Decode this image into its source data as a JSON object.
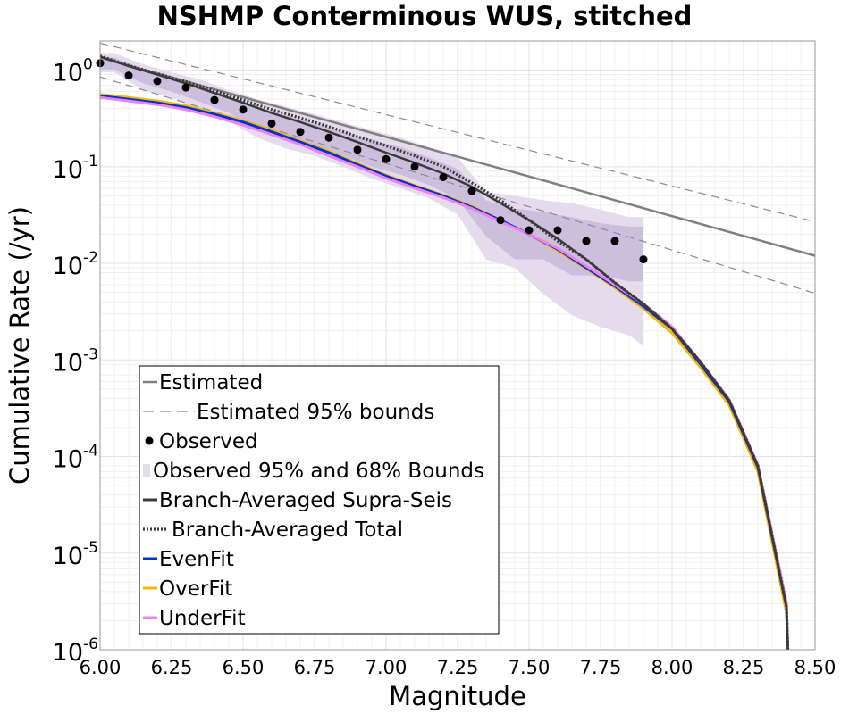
{
  "chart_data": {
    "type": "line",
    "title": "NSHMP Conterminous WUS, stitched",
    "xlabel": "Magnitude",
    "ylabel": "Cumulative Rate (/yr)",
    "xlim": [
      6.0,
      8.5
    ],
    "ylim": [
      1e-06,
      2.0
    ],
    "y_scale": "log",
    "grid": true,
    "legend_placement": "bottom-left",
    "x_ticks": [
      "6.00",
      "6.25",
      "6.50",
      "6.75",
      "7.00",
      "7.25",
      "7.50",
      "7.75",
      "8.00",
      "8.25",
      "8.50"
    ],
    "y_ticks": [
      {
        "value": 1,
        "base": "10",
        "exp": "0"
      },
      {
        "value": 0.1,
        "base": "10",
        "exp": "-1"
      },
      {
        "value": 0.01,
        "base": "10",
        "exp": "-2"
      },
      {
        "value": 0.001,
        "base": "10",
        "exp": "-3"
      },
      {
        "value": 0.0001,
        "base": "10",
        "exp": "-4"
      },
      {
        "value": 1e-05,
        "base": "10",
        "exp": "-5"
      },
      {
        "value": 1e-06,
        "base": "10",
        "exp": "-6"
      }
    ],
    "colors": {
      "estimated": "#808080",
      "bounds": "#8c8c8c",
      "observed": "#000000",
      "band95": "#e4dced",
      "band68": "#c7bad9",
      "supra": "#3a3a3a",
      "total": "#3a3a3a",
      "evenfit": "#0030d8",
      "overfit": "#f5b800",
      "underfit": "#ee82ee"
    },
    "legend": [
      {
        "key": "estimated",
        "label": "Estimated"
      },
      {
        "key": "bounds",
        "label": "Estimated 95% bounds"
      },
      {
        "key": "observed",
        "label": "Observed"
      },
      {
        "key": "bands",
        "label": "Observed 95% and 68% Bounds"
      },
      {
        "key": "supra",
        "label": "Branch-Averaged Supra-Seis"
      },
      {
        "key": "total",
        "label": "Branch-Averaged Total"
      },
      {
        "key": "evenfit",
        "label": "EvenFit"
      },
      {
        "key": "overfit",
        "label": "OverFit"
      },
      {
        "key": "underfit",
        "label": "UnderFit"
      }
    ],
    "estimated": {
      "x": [
        6.0,
        8.5
      ],
      "y": [
        1.35,
        0.012
      ]
    },
    "estimated_upper": {
      "x": [
        6.0,
        8.5
      ],
      "y": [
        1.9,
        0.027
      ]
    },
    "estimated_lower": {
      "x": [
        6.0,
        8.5
      ],
      "y": [
        0.85,
        0.0049
      ]
    },
    "observed": {
      "x": [
        6.0,
        6.1,
        6.2,
        6.3,
        6.4,
        6.5,
        6.6,
        6.7,
        6.8,
        6.9,
        7.0,
        7.1,
        7.2,
        7.3,
        7.4,
        7.5,
        7.6,
        7.7,
        7.8,
        7.9
      ],
      "y": [
        1.18,
        0.88,
        0.77,
        0.66,
        0.49,
        0.39,
        0.28,
        0.23,
        0.2,
        0.15,
        0.12,
        0.1,
        0.078,
        0.056,
        0.028,
        0.022,
        0.022,
        0.017,
        0.017,
        0.011
      ]
    },
    "observed_95_bounds": {
      "x": [
        6.0,
        6.05,
        6.15,
        6.25,
        6.35,
        6.45,
        6.55,
        6.65,
        6.75,
        6.85,
        6.95,
        7.05,
        7.15,
        7.25,
        7.35,
        7.45,
        7.55,
        7.65,
        7.75,
        7.85,
        7.9
      ],
      "upper": [
        1.5,
        1.5,
        1.15,
        0.95,
        0.8,
        0.62,
        0.5,
        0.42,
        0.35,
        0.29,
        0.24,
        0.2,
        0.16,
        0.125,
        0.055,
        0.05,
        0.045,
        0.042,
        0.036,
        0.03,
        0.03
      ],
      "lower": [
        0.95,
        0.95,
        0.62,
        0.52,
        0.4,
        0.3,
        0.2,
        0.155,
        0.13,
        0.1,
        0.075,
        0.06,
        0.047,
        0.032,
        0.011,
        0.009,
        0.0048,
        0.0029,
        0.0022,
        0.0018,
        0.0014
      ]
    },
    "observed_68_bounds": {
      "x": [
        6.0,
        6.05,
        6.15,
        6.25,
        6.35,
        6.45,
        6.55,
        6.65,
        6.75,
        6.85,
        6.95,
        7.05,
        7.15,
        7.25,
        7.35,
        7.45,
        7.55,
        7.65,
        7.75,
        7.85,
        7.9
      ],
      "upper": [
        1.35,
        1.35,
        1.0,
        0.83,
        0.68,
        0.52,
        0.41,
        0.34,
        0.28,
        0.23,
        0.19,
        0.16,
        0.125,
        0.095,
        0.045,
        0.037,
        0.034,
        0.03,
        0.026,
        0.024,
        0.024
      ],
      "lower": [
        1.02,
        1.02,
        0.73,
        0.6,
        0.47,
        0.36,
        0.24,
        0.2,
        0.17,
        0.13,
        0.1,
        0.083,
        0.065,
        0.046,
        0.019,
        0.011,
        0.011,
        0.0075,
        0.0075,
        0.0065,
        0.0065
      ]
    },
    "series": [
      {
        "name": "Branch-Averaged Supra-Seis",
        "key": "supra",
        "x": [
          6.0,
          6.1,
          6.2,
          6.3,
          6.4,
          6.5,
          6.6,
          6.7,
          6.8,
          6.9,
          7.0,
          7.1,
          7.2,
          7.3,
          7.4,
          7.5,
          7.6,
          7.7,
          7.8,
          7.9,
          8.0,
          8.1,
          8.2,
          8.3,
          8.4,
          8.405
        ],
        "y": [
          1.38,
          1.1,
          0.9,
          0.73,
          0.58,
          0.46,
          0.36,
          0.29,
          0.23,
          0.18,
          0.14,
          0.11,
          0.085,
          0.062,
          0.042,
          0.028,
          0.018,
          0.011,
          0.0063,
          0.0038,
          0.0021,
          0.00095,
          0.00038,
          8e-05,
          2.8e-06,
          1e-06
        ]
      },
      {
        "name": "Branch-Averaged Total",
        "key": "total",
        "x": [
          6.0,
          6.1,
          6.2,
          6.3,
          6.4,
          6.5,
          6.6,
          6.7,
          6.8,
          6.9,
          7.0,
          7.1,
          7.2,
          7.3,
          7.4,
          7.5,
          7.6,
          7.7,
          7.8,
          7.9,
          8.0,
          8.1,
          8.2,
          8.3,
          8.4,
          8.405
        ],
        "y": [
          1.4,
          1.12,
          0.92,
          0.76,
          0.61,
          0.49,
          0.39,
          0.32,
          0.26,
          0.205,
          0.165,
          0.13,
          0.1,
          0.068,
          0.045,
          0.028,
          0.017,
          0.011,
          0.0063,
          0.0038,
          0.0021,
          0.00095,
          0.00038,
          8e-05,
          2.8e-06,
          1e-06
        ]
      },
      {
        "name": "EvenFit",
        "key": "evenfit",
        "x": [
          6.0,
          6.1,
          6.2,
          6.3,
          6.4,
          6.5,
          6.6,
          6.7,
          6.8,
          6.9,
          7.0,
          7.1,
          7.2,
          7.3,
          7.4,
          7.5,
          7.6,
          7.7,
          7.8,
          7.9,
          8.0,
          8.1,
          8.2,
          8.3,
          8.4,
          8.405
        ],
        "y": [
          0.54,
          0.5,
          0.46,
          0.41,
          0.35,
          0.29,
          0.23,
          0.18,
          0.14,
          0.105,
          0.08,
          0.063,
          0.05,
          0.038,
          0.028,
          0.02,
          0.014,
          0.009,
          0.0058,
          0.0036,
          0.0021,
          0.0009,
          0.00037,
          7.8e-05,
          2.8e-06,
          1e-06
        ]
      },
      {
        "name": "OverFit",
        "key": "overfit",
        "x": [
          6.0,
          6.1,
          6.2,
          6.3,
          6.4,
          6.5,
          6.6,
          6.7,
          6.8,
          6.9,
          7.0,
          7.1,
          7.2,
          7.3,
          7.4,
          7.5,
          7.6,
          7.7,
          7.8,
          7.9,
          8.0,
          8.1,
          8.2,
          8.3,
          8.4,
          8.405
        ],
        "y": [
          0.56,
          0.52,
          0.48,
          0.43,
          0.36,
          0.3,
          0.24,
          0.185,
          0.145,
          0.108,
          0.082,
          0.064,
          0.051,
          0.039,
          0.028,
          0.02,
          0.0135,
          0.0088,
          0.0056,
          0.0034,
          0.0019,
          0.00083,
          0.00034,
          7e-05,
          2.4e-06,
          1e-06
        ]
      },
      {
        "name": "UnderFit",
        "key": "underfit",
        "x": [
          6.0,
          6.1,
          6.2,
          6.3,
          6.4,
          6.5,
          6.6,
          6.7,
          6.8,
          6.9,
          7.0,
          7.1,
          7.2,
          7.3,
          7.4,
          7.5,
          7.6,
          7.7,
          7.8,
          7.9,
          8.0,
          8.1,
          8.2,
          8.3,
          8.4,
          8.405
        ],
        "y": [
          0.52,
          0.48,
          0.44,
          0.39,
          0.33,
          0.27,
          0.215,
          0.17,
          0.13,
          0.1,
          0.076,
          0.06,
          0.048,
          0.037,
          0.027,
          0.02,
          0.0143,
          0.0094,
          0.006,
          0.0038,
          0.0022,
          0.00095,
          0.00039,
          8.2e-05,
          3.1e-06,
          1e-06
        ]
      }
    ]
  }
}
